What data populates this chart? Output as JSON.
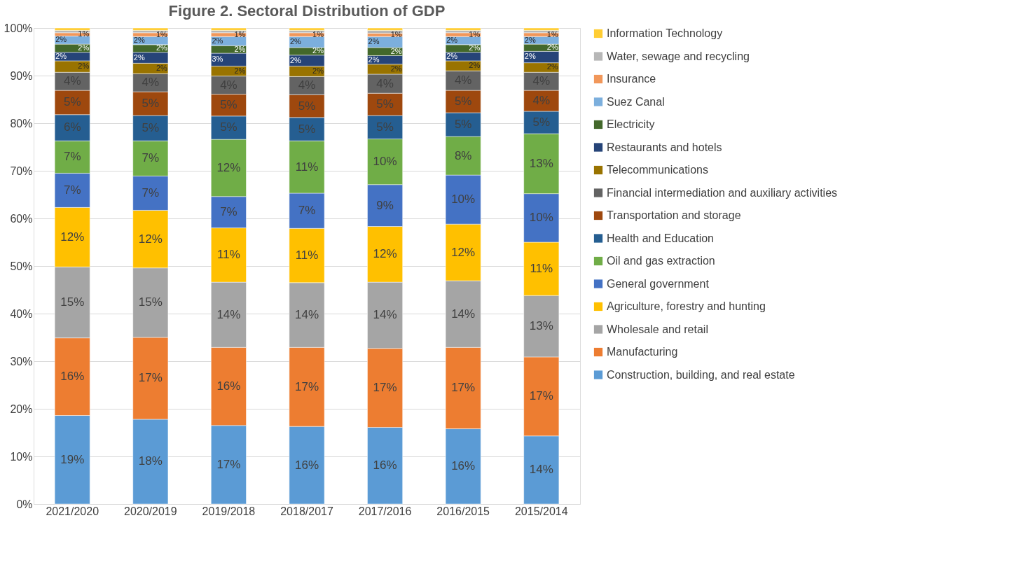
{
  "chart_data": {
    "type": "bar",
    "stacked": true,
    "title": "Figure 2. Sectoral Distribution of GDP",
    "categories": [
      "2021/2020",
      "2020/2019",
      "2019/2018",
      "2018/2017",
      "2017/2016",
      "2016/2015",
      "2015/2014"
    ],
    "ylim": [
      0,
      100
    ],
    "yticks": [
      {
        "value": 0,
        "label": "0%"
      },
      {
        "value": 10,
        "label": "10%"
      },
      {
        "value": 20,
        "label": "20%"
      },
      {
        "value": 30,
        "label": "30%"
      },
      {
        "value": 40,
        "label": "40%"
      },
      {
        "value": 50,
        "label": "50%"
      },
      {
        "value": 60,
        "label": "60%"
      },
      {
        "value": 70,
        "label": "70%"
      },
      {
        "value": 80,
        "label": "80%"
      },
      {
        "value": 90,
        "label": "90%"
      },
      {
        "value": 100,
        "label": "100%"
      }
    ],
    "grid": "y",
    "legend": "right",
    "series": [
      {
        "name": "Construction, building, and real estate",
        "color": "#5b9bd5",
        "values": [
          18.6,
          17.8,
          16.5,
          16.3,
          16.1,
          15.8,
          14.3
        ],
        "value_labels": [
          "19%",
          "18%",
          "17%",
          "16%",
          "16%",
          "16%",
          "14%"
        ]
      },
      {
        "name": "Manufacturing",
        "color": "#ed7d31",
        "values": [
          16.3,
          17.2,
          16.4,
          16.6,
          16.6,
          17.1,
          16.6
        ],
        "value_labels": [
          "16%",
          "17%",
          "16%",
          "17%",
          "17%",
          "17%",
          "17%"
        ]
      },
      {
        "name": "Wholesale and retail",
        "color": "#a5a5a5",
        "values": [
          14.9,
          14.6,
          13.7,
          13.6,
          13.9,
          14.0,
          12.9
        ],
        "value_labels": [
          "15%",
          "15%",
          "14%",
          "14%",
          "14%",
          "14%",
          "13%"
        ]
      },
      {
        "name": "Agriculture, forestry and hunting",
        "color": "#ffc000",
        "values": [
          12.5,
          12.1,
          11.4,
          11.4,
          11.7,
          11.9,
          11.2
        ],
        "value_labels": [
          "12%",
          "12%",
          "11%",
          "11%",
          "12%",
          "12%",
          "11%"
        ]
      },
      {
        "name": "General government",
        "color": "#4472c4",
        "values": [
          7.2,
          7.2,
          6.6,
          7.4,
          8.8,
          10.3,
          10.2
        ],
        "value_labels": [
          "7%",
          "7%",
          "7%",
          "7%",
          "9%",
          "10%",
          "10%"
        ]
      },
      {
        "name": "Oil and gas extraction",
        "color": "#70ad47",
        "values": [
          6.8,
          7.4,
          12.0,
          11.0,
          9.6,
          8.1,
          12.6
        ],
        "value_labels": [
          "7%",
          "7%",
          "12%",
          "11%",
          "10%",
          "8%",
          "13%"
        ]
      },
      {
        "name": "Health and Education",
        "color": "#255e91",
        "values": [
          5.5,
          5.3,
          4.9,
          4.9,
          4.9,
          5.0,
          4.7
        ],
        "value_labels": [
          "6%",
          "5%",
          "5%",
          "5%",
          "5%",
          "5%",
          "5%"
        ]
      },
      {
        "name": "Transportation and storage",
        "color": "#9e480e",
        "values": [
          5.1,
          5.0,
          4.6,
          4.8,
          4.7,
          4.7,
          4.4
        ],
        "value_labels": [
          "5%",
          "5%",
          "5%",
          "5%",
          "5%",
          "5%",
          "4%"
        ]
      },
      {
        "name": "Financial intermediation and auxiliary activities",
        "color": "#636363",
        "values": [
          3.8,
          3.8,
          3.8,
          3.8,
          4.0,
          4.1,
          3.8
        ],
        "value_labels": [
          "4%",
          "4%",
          "4%",
          "4%",
          "4%",
          "4%",
          "4%"
        ]
      },
      {
        "name": "Telecommunications",
        "color": "#997300",
        "values": [
          2.4,
          2.2,
          2.1,
          2.2,
          2.1,
          2.1,
          2.0
        ],
        "value_labels": [
          "2%",
          "2%",
          "2%",
          "2%",
          "2%",
          "2%",
          "2%"
        ]
      },
      {
        "name": "Restaurants and hotels",
        "color": "#264478",
        "values": [
          1.8,
          2.3,
          2.7,
          2.3,
          1.8,
          1.8,
          2.4
        ],
        "value_labels": [
          "2%",
          "2%",
          "3%",
          "2%",
          "2%",
          "2%",
          "2%"
        ]
      },
      {
        "name": "Electricity",
        "color": "#43682b",
        "values": [
          1.7,
          1.6,
          1.6,
          1.6,
          1.7,
          1.6,
          1.5
        ],
        "value_labels": [
          "2%",
          "2%",
          "2%",
          "2%",
          "2%",
          "2%",
          "2%"
        ]
      },
      {
        "name": "Suez Canal",
        "color": "#7cafdd",
        "values": [
          1.7,
          1.7,
          1.9,
          2.3,
          2.3,
          1.7,
          1.6
        ],
        "value_labels": [
          "2%",
          "2%",
          "2%",
          "2%",
          "2%",
          "2%",
          "2%"
        ]
      },
      {
        "name": "Insurance",
        "color": "#f1975a",
        "values": [
          0.7,
          0.8,
          0.8,
          0.8,
          0.7,
          0.8,
          0.8
        ],
        "value_labels": [
          "1%",
          "1%",
          "1%",
          "1%",
          "1%",
          "1%",
          "1%"
        ]
      },
      {
        "name": "Water, sewage and recycling",
        "color": "#b7b7b7",
        "values": [
          0.5,
          0.5,
          0.5,
          0.5,
          0.6,
          0.5,
          0.5
        ],
        "value_labels": [
          null,
          null,
          null,
          null,
          null,
          null,
          null
        ]
      },
      {
        "name": "Information Technology",
        "color": "#ffcd33",
        "values": [
          0.5,
          0.5,
          0.5,
          0.5,
          0.5,
          0.5,
          0.5
        ],
        "value_labels": [
          null,
          null,
          null,
          null,
          null,
          null,
          null
        ]
      }
    ]
  }
}
